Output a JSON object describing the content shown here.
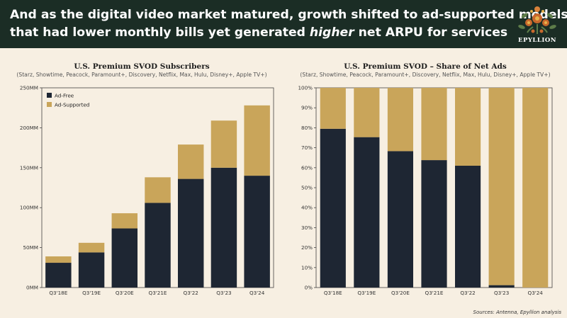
{
  "header": {
    "line1": "And as the digital video market matured, growth shifted to ad-supported models",
    "line2_pre": "that had lower monthly bills yet generated ",
    "line2_em": "higher",
    "line2_post": " net ARPU for services"
  },
  "brand": {
    "name": "EPYLLION",
    "logo_icon": "floral-emblem-icon"
  },
  "source": "Sources: Antenna, Epyllion analysis",
  "colors": {
    "header_bg": "#1b2d25",
    "page_bg": "#f7efe2",
    "dark": "#1e2633",
    "gold": "#c9a55a"
  },
  "chart_data": [
    {
      "type": "bar",
      "stacked": true,
      "title": "U.S. Premium SVOD Subscribers",
      "subtitle": "(Starz, Showtime, Peacock, Paramount+, Discovery, Netflix, Max, Hulu, Disney+, Apple TV+)",
      "categories": [
        "Q3'18E",
        "Q3'19E",
        "Q3'20E",
        "Q3'21E",
        "Q3'22",
        "Q3'23",
        "Q3'24"
      ],
      "series": [
        {
          "name": "Ad-Free",
          "color": "#1e2633",
          "values": [
            31,
            44,
            74,
            106,
            136,
            150,
            140
          ]
        },
        {
          "name": "Ad-Supported",
          "color": "#c9a55a",
          "values": [
            8,
            12,
            19,
            32,
            43,
            59,
            88
          ]
        }
      ],
      "yticks": [
        "0MM",
        "50MM",
        "100MM",
        "150MM",
        "200MM",
        "250MM"
      ],
      "ylim": [
        0,
        250
      ],
      "legend": "top-left",
      "grid": false
    },
    {
      "type": "bar",
      "stacked": true,
      "title": "U.S. Premium SVOD – Share of Net Ads",
      "subtitle": "(Starz, Showtime, Peacock, Paramount+, Discovery, Netflix, Max, Hulu, Disney+, Apple TV+)",
      "categories": [
        "Q3'18E",
        "Q3'19E",
        "Q3'20E",
        "Q3'21E",
        "Q3'22",
        "Q3'23",
        "Q3'24"
      ],
      "series": [
        {
          "name": "Ad-Free",
          "color": "#1e2633",
          "values": [
            79.5,
            75.3,
            68.3,
            63.8,
            61.0,
            1.2,
            0
          ]
        },
        {
          "name": "Ad-Supported",
          "color": "#c9a55a",
          "values": [
            20.5,
            24.7,
            31.7,
            36.2,
            39.0,
            98.8,
            100
          ]
        }
      ],
      "yticks": [
        "0%",
        "10%",
        "20%",
        "30%",
        "40%",
        "50%",
        "60%",
        "70%",
        "80%",
        "90%",
        "100%"
      ],
      "ylim": [
        0,
        100
      ],
      "legend": "none",
      "grid": false
    }
  ]
}
